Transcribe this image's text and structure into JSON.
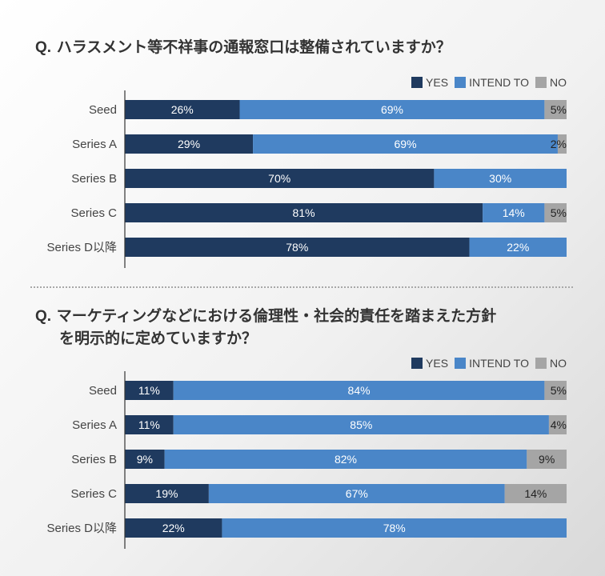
{
  "questions": [
    {
      "prefix": "Q.",
      "title_lines": [
        "ハラスメント等不祥事の通報窓口は整備されていますか？"
      ]
    },
    {
      "prefix": "Q.",
      "title_lines": [
        "マーケティングなどにおける倫理性・社会的責任を踏まえた方針",
        "を明示的に定めていますか？"
      ]
    }
  ],
  "legend": [
    {
      "label": "YES",
      "color": "#1f3a5f"
    },
    {
      "label": "INTEND TO",
      "color": "#4a86c8"
    },
    {
      "label": "NO",
      "color": "#a5a5a5"
    }
  ],
  "chart_data": [
    {
      "type": "bar",
      "orientation": "horizontal",
      "stacked": true,
      "percent_stacked": true,
      "title": "ハラスメント等不祥事の通報窓口は整備されていますか？",
      "categories": [
        "Seed",
        "Series A",
        "Series B",
        "Series C",
        "Series D以降"
      ],
      "series": [
        {
          "name": "YES",
          "color": "#1f3a5f",
          "values": [
            26,
            29,
            70,
            81,
            78
          ]
        },
        {
          "name": "INTEND TO",
          "color": "#4a86c8",
          "values": [
            69,
            69,
            30,
            14,
            22
          ]
        },
        {
          "name": "NO",
          "color": "#a5a5a5",
          "values": [
            5,
            2,
            0,
            5,
            0
          ]
        }
      ],
      "unit": "%",
      "xlim": [
        0,
        100
      ],
      "legend_position": "top-right",
      "grid": false
    },
    {
      "type": "bar",
      "orientation": "horizontal",
      "stacked": true,
      "percent_stacked": true,
      "title": "マーケティングなどにおける倫理性・社会的責任を踏まえた方針を明示的に定めていますか？",
      "categories": [
        "Seed",
        "Series A",
        "Series B",
        "Series C",
        "Series D以降"
      ],
      "series": [
        {
          "name": "YES",
          "color": "#1f3a5f",
          "values": [
            11,
            11,
            9,
            19,
            22
          ]
        },
        {
          "name": "INTEND TO",
          "color": "#4a86c8",
          "values": [
            84,
            85,
            82,
            67,
            78
          ]
        },
        {
          "name": "NO",
          "color": "#a5a5a5",
          "values": [
            5,
            4,
            9,
            14,
            0
          ]
        }
      ],
      "unit": "%",
      "xlim": [
        0,
        100
      ],
      "legend_position": "top-right",
      "grid": false
    }
  ]
}
